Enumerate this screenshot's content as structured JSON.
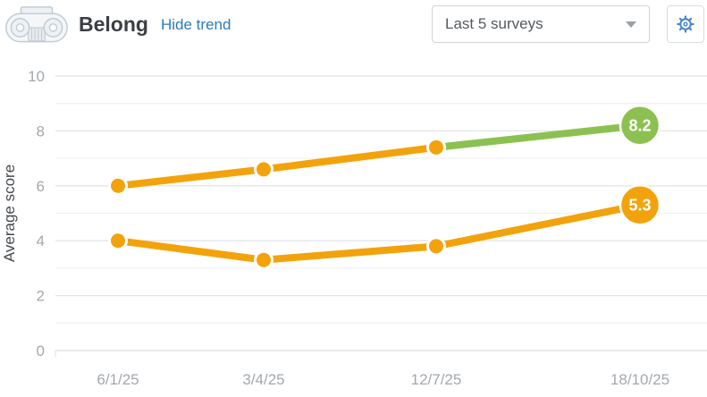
{
  "header": {
    "title": "Belong",
    "trend_toggle_label": "Hide trend",
    "survey_range": {
      "selected": "Last 5 surveys"
    },
    "icons": {
      "category": "column-capital-icon",
      "settings": "gear-icon"
    }
  },
  "chart_data": {
    "type": "line",
    "title": "",
    "xlabel": "",
    "ylabel": "Average score",
    "ylim": [
      0,
      10
    ],
    "yticks": [
      0,
      2,
      4,
      6,
      8,
      10
    ],
    "grid": "horizontal",
    "legend": "none",
    "categories": [
      "6/1/25",
      "3/4/25",
      "12/7/25",
      "18/10/25"
    ],
    "series": [
      {
        "name": "upper-score-line",
        "values": [
          6.0,
          6.6,
          7.4,
          8.2
        ],
        "color": "#f2a30c",
        "trend_segment_color": "#8cc152",
        "end_label": "8.2",
        "end_badge_color": "#8cc152"
      },
      {
        "name": "lower-score-line",
        "values": [
          4.0,
          3.3,
          3.8,
          5.3
        ],
        "color": "#f2a30c",
        "trend_segment_color": null,
        "end_label": "5.3",
        "end_badge_color": "#f2a30c"
      }
    ],
    "colors": {
      "grid_major": "#e2e5e8",
      "grid_minor": "#f0f2f3",
      "zero_line": "#d8dcdf",
      "tick_label": "#a3a8ad",
      "axis_title": "#43484d",
      "badge_text": "#ffffff"
    }
  }
}
